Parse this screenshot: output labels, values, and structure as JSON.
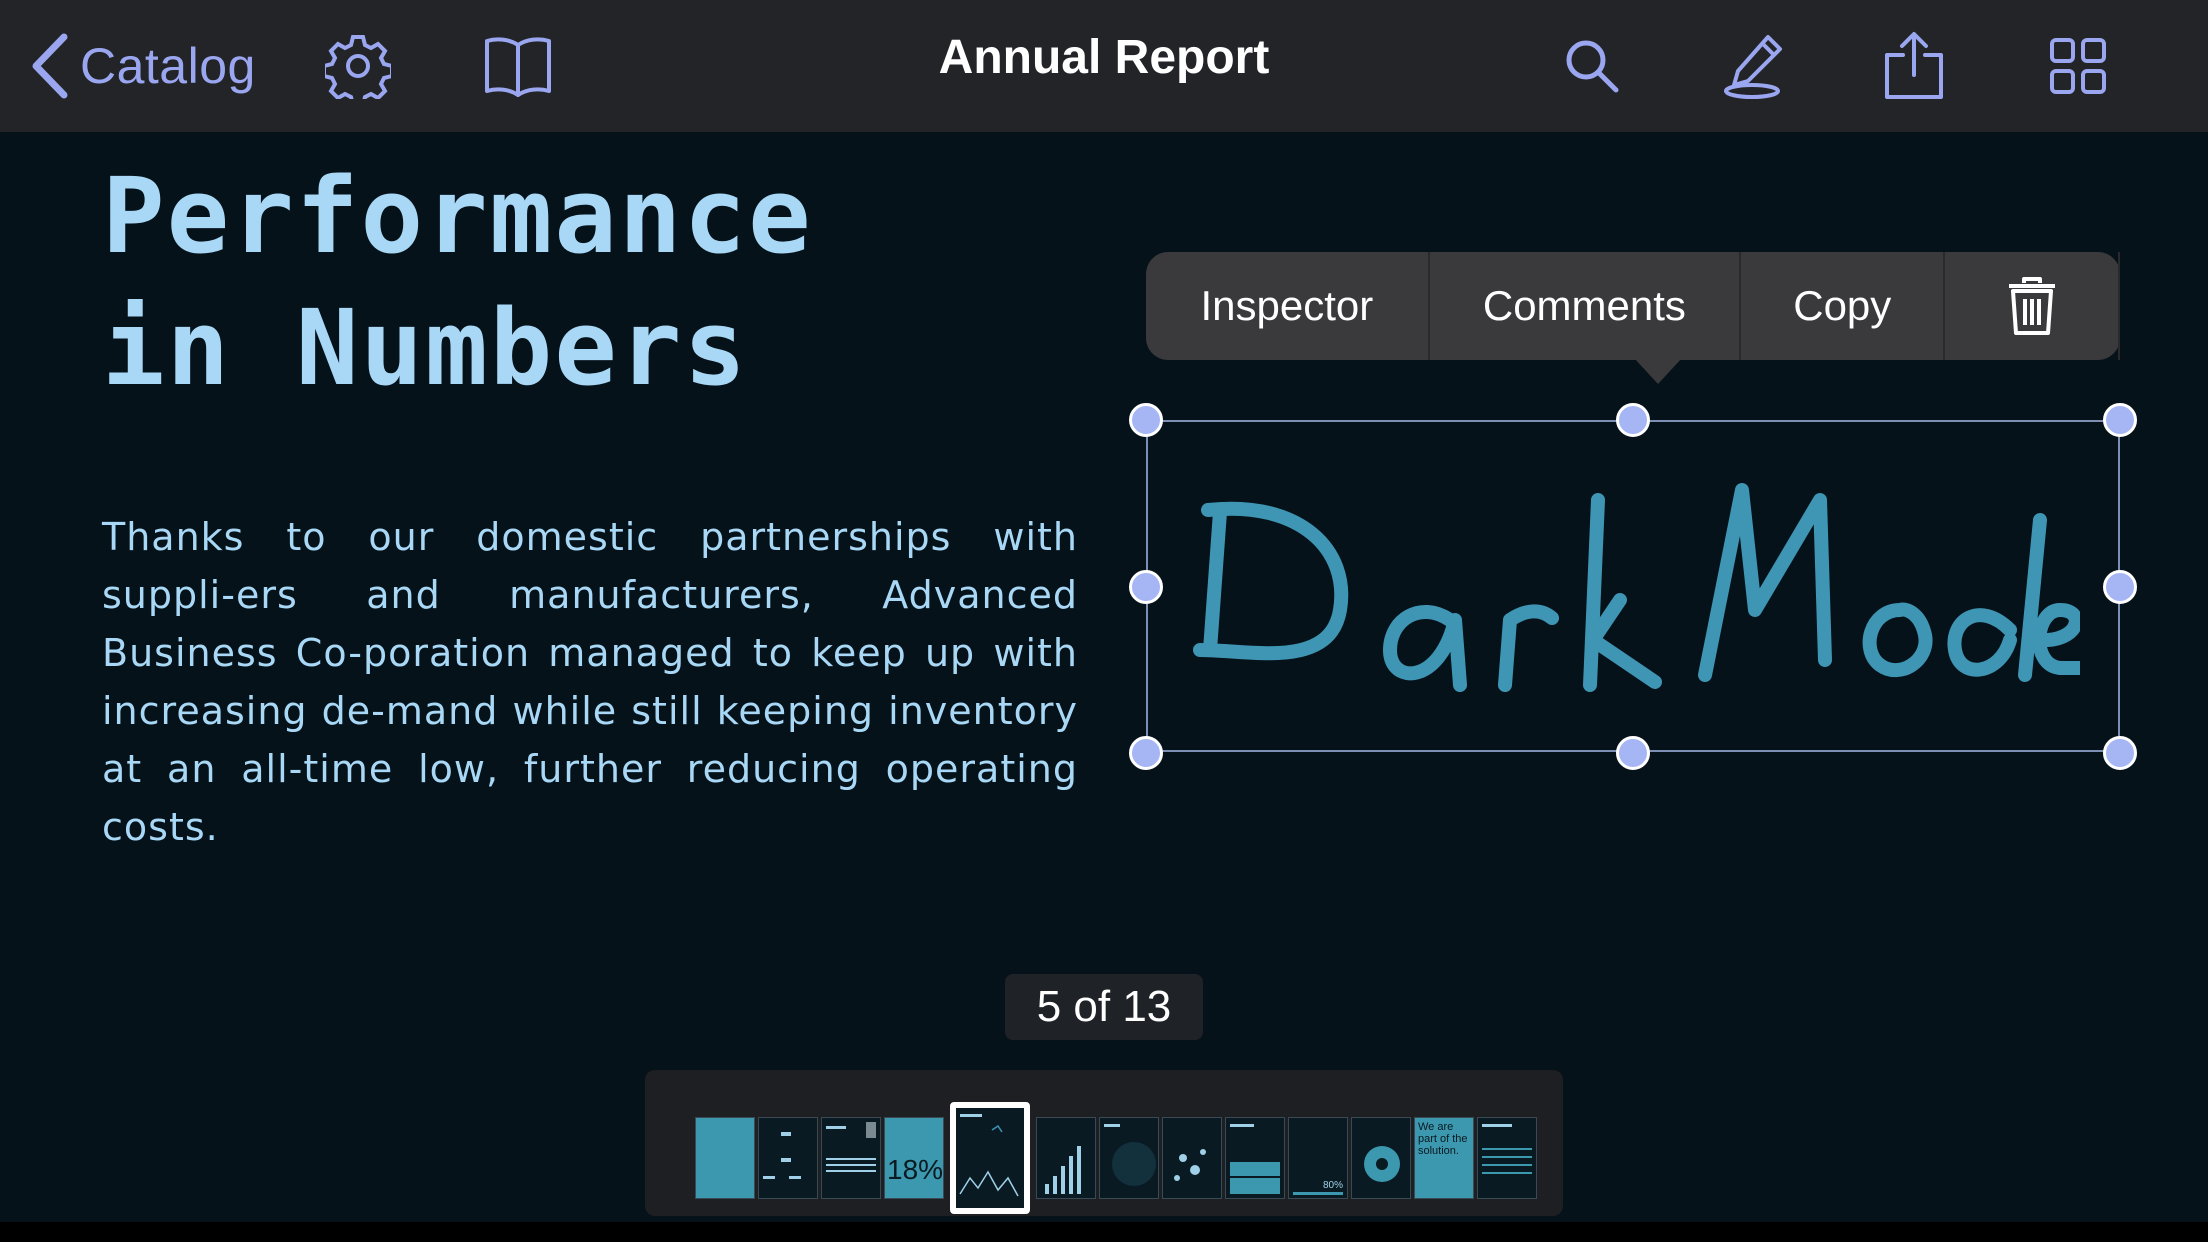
{
  "toolbar": {
    "back_label": "Catalog",
    "title": "Annual Report",
    "icons": [
      "chevron-left-icon",
      "gear-icon",
      "book-icon",
      "search-icon",
      "pencil-icon",
      "share-icon",
      "grid-icon"
    ]
  },
  "document": {
    "heading_line1": "Performance",
    "heading_line2": "in Numbers",
    "body": "Thanks to our domestic partnerships with suppli-ers and manufacturers, Advanced Business Co-poration managed to keep up with increasing de-mand while still keeping inventory at an all-time low, further reducing operating costs.",
    "handwriting": "Dark Mode",
    "handwriting_color": "#3f96b4"
  },
  "popover": {
    "items": [
      "Inspector",
      "Comments",
      "Copy"
    ],
    "delete_icon": "trash-icon"
  },
  "page_indicator": "5 of 13",
  "thumbnails": {
    "current_index": 5,
    "total": 13,
    "labels": {
      "p4": "18%",
      "p11": "80%",
      "p13": "We are part of the solution."
    }
  },
  "colors": {
    "accent": "#9aa7f0",
    "heading": "#a8d8f6",
    "background": "#06121a",
    "toolbar": "#232427",
    "handle": "#a6b6f5"
  }
}
